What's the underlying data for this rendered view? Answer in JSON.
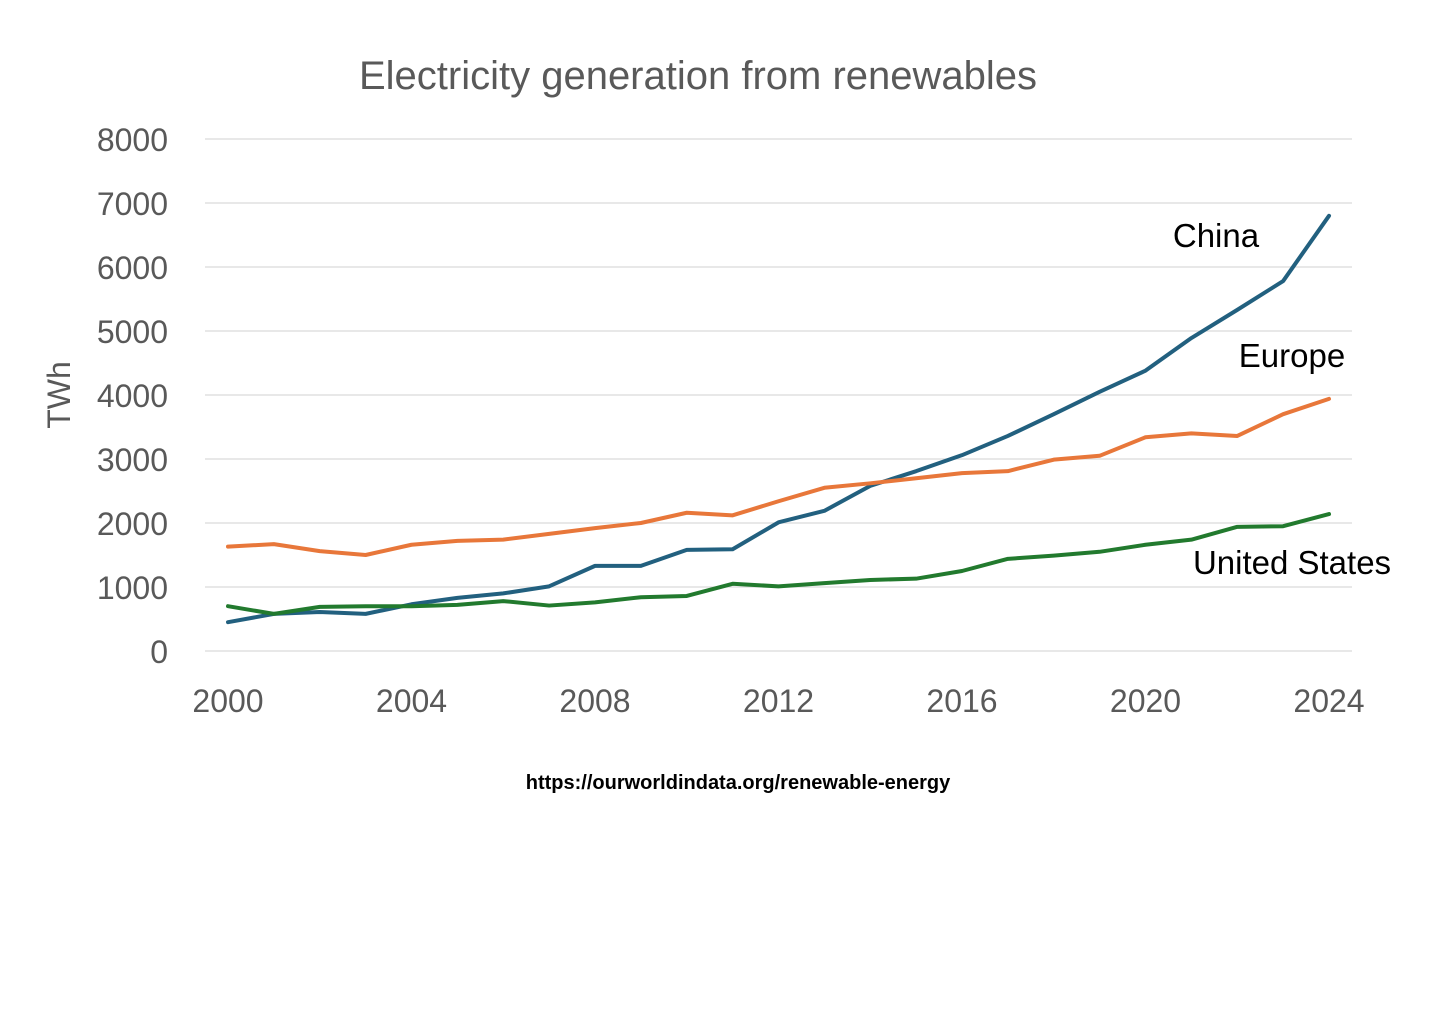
{
  "chart_data": {
    "type": "line",
    "title": "Electricity generation from renewables",
    "xlabel": "",
    "ylabel": "TWh",
    "xlim": [
      2000,
      2024
    ],
    "ylim": [
      0,
      8000
    ],
    "x_ticks": [
      2000,
      2004,
      2008,
      2012,
      2016,
      2020,
      2024
    ],
    "y_ticks": [
      0,
      1000,
      2000,
      3000,
      4000,
      5000,
      6000,
      7000,
      8000
    ],
    "grid": true,
    "legend": "inline labels at right",
    "x": [
      2000,
      2001,
      2002,
      2003,
      2004,
      2005,
      2006,
      2007,
      2008,
      2009,
      2010,
      2011,
      2012,
      2013,
      2014,
      2015,
      2016,
      2017,
      2018,
      2019,
      2020,
      2021,
      2022,
      2023,
      2024
    ],
    "series": [
      {
        "name": "China",
        "color": "#22607f",
        "values": [
          450,
          580,
          610,
          580,
          730,
          830,
          900,
          1010,
          1330,
          1330,
          1580,
          1590,
          2010,
          2190,
          2580,
          2810,
          3060,
          3360,
          3700,
          4050,
          4380,
          4890,
          5330,
          5780,
          6800
        ]
      },
      {
        "name": "Europe",
        "color": "#e8773a",
        "values": [
          1630,
          1670,
          1560,
          1500,
          1660,
          1720,
          1740,
          1830,
          1920,
          2000,
          2160,
          2120,
          2340,
          2550,
          2620,
          2700,
          2780,
          2810,
          2990,
          3050,
          3340,
          3400,
          3360,
          3700,
          3940
        ]
      },
      {
        "name": "United States",
        "color": "#227a2e",
        "values": [
          700,
          580,
          690,
          700,
          700,
          720,
          780,
          710,
          760,
          840,
          860,
          1050,
          1010,
          1060,
          1110,
          1130,
          1250,
          1440,
          1490,
          1550,
          1660,
          1740,
          1940,
          1950,
          2140
        ]
      }
    ]
  },
  "source": "https://ourworldindata.org/renewable-energy"
}
